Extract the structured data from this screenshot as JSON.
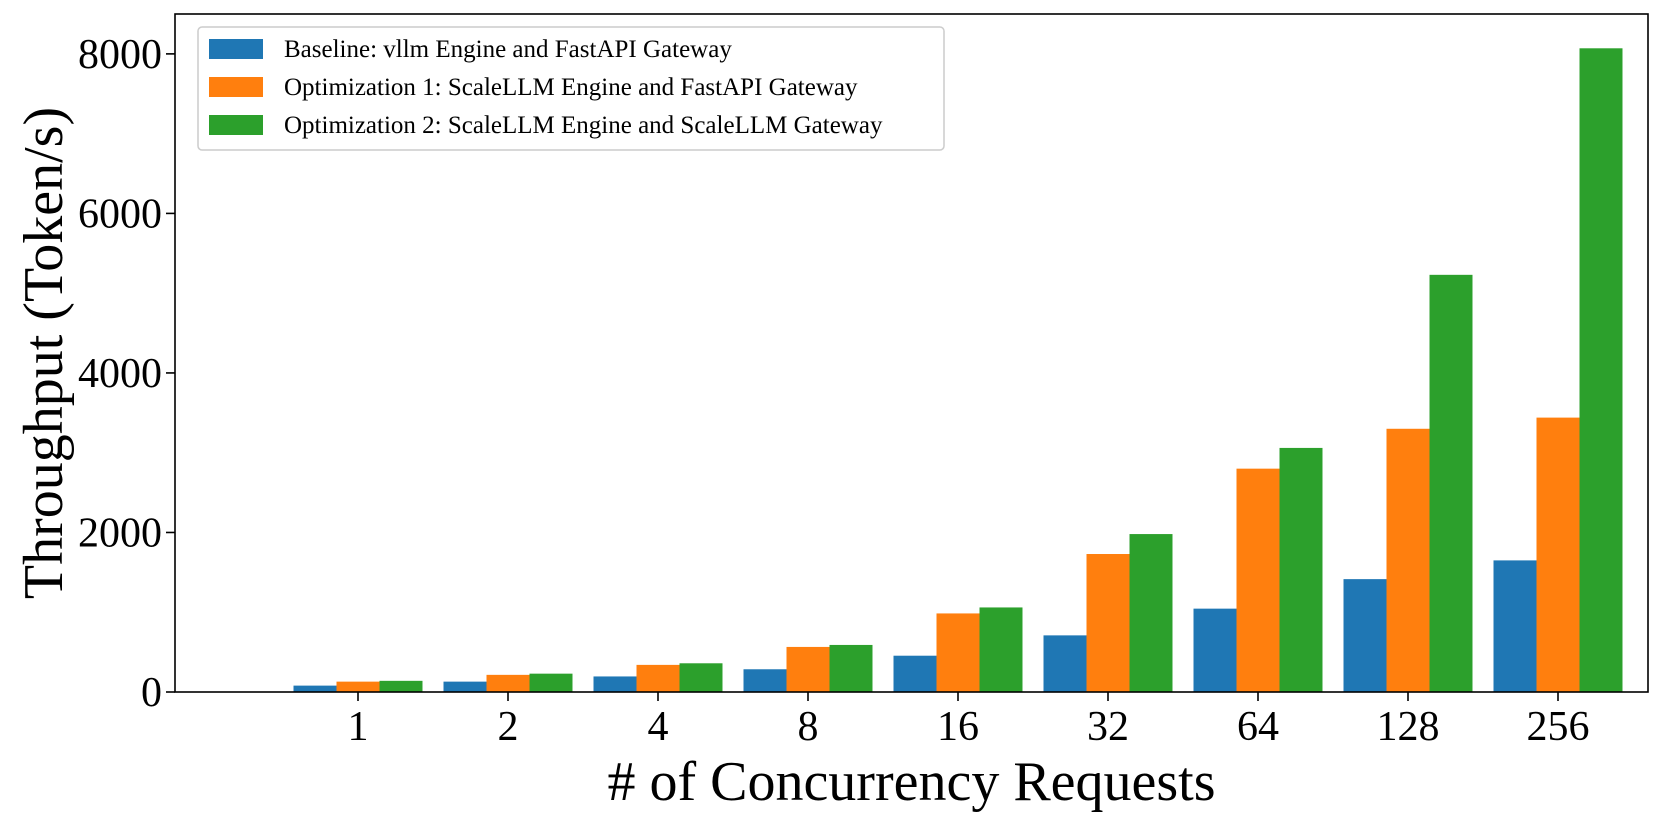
{
  "chart_data": {
    "type": "bar",
    "xlabel": "# of Concurrency Requests",
    "ylabel": "Throughput (Token/s)",
    "categories": [
      "1",
      "2",
      "4",
      "8",
      "16",
      "32",
      "64",
      "128",
      "256"
    ],
    "ylim": [
      0,
      8500
    ],
    "yticks": [
      0,
      2000,
      4000,
      6000,
      8000
    ],
    "grid": false,
    "legend_position": "top-left",
    "series": [
      {
        "name": "Baseline: vllm Engine and FastAPI Gateway",
        "color": "#1f77b4",
        "values": [
          80,
          130,
          195,
          285,
          455,
          710,
          1045,
          1415,
          1650
        ]
      },
      {
        "name": "Optimization 1: ScaleLLM Engine and FastAPI Gateway",
        "color": "#ff7f0e",
        "values": [
          130,
          215,
          340,
          565,
          985,
          1730,
          2800,
          3300,
          3440
        ]
      },
      {
        "name": "Optimization 2: ScaleLLM Engine and ScaleLLM Gateway",
        "color": "#2ca02c",
        "values": [
          140,
          230,
          360,
          590,
          1060,
          1980,
          3060,
          5230,
          8070
        ]
      }
    ]
  }
}
